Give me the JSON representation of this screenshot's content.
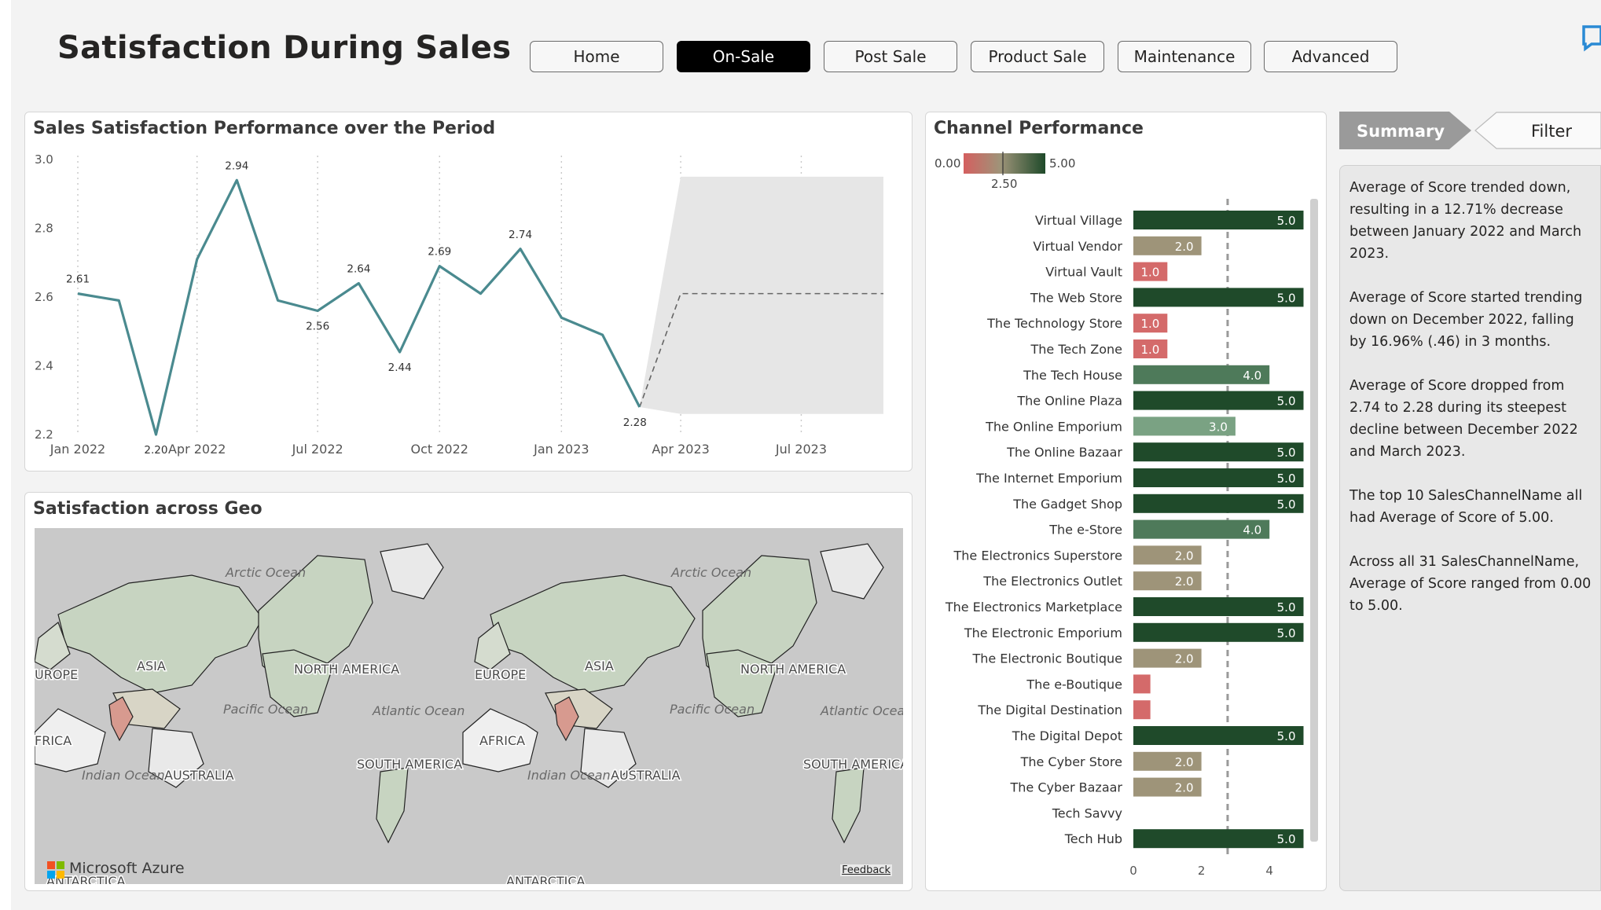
{
  "page": {
    "title": "Satisfaction During Sales"
  },
  "nav": {
    "buttons": [
      {
        "label": "Home",
        "active": false
      },
      {
        "label": "On-Sale",
        "active": true
      },
      {
        "label": "Post Sale",
        "active": false
      },
      {
        "label": "Product Sale",
        "active": false
      },
      {
        "label": "Maintenance",
        "active": false
      },
      {
        "label": "Advanced",
        "active": false
      }
    ]
  },
  "line_card": {
    "title": "Sales Satisfaction Performance over the Period"
  },
  "geo_card": {
    "title": "Satisfaction across Geo",
    "ocean_labels": [
      "Arctic Ocean",
      "Pacific Ocean",
      "Atlantic Ocean",
      "Indian Ocean",
      "Atlantic Ocea"
    ],
    "continent_labels": [
      "ASIA",
      "EUROPE",
      "UROPE",
      "AFRICA",
      "FRICA",
      "NORTH AMERICA",
      "SOUTH AMERICA",
      "AUSTRALIA",
      "ANTARCTICA"
    ],
    "brand": "Microsoft Azure",
    "feedback": "Feedback"
  },
  "channel_card": {
    "title": "Channel Performance"
  },
  "side": {
    "summary_tab": "Summary",
    "filter_tab": "Filter",
    "paragraphs": [
      "Average of Score trended down, resulting in a 12.71% decrease between January 2022 and March 2023.",
      "Average of Score started trending down on December 2022, falling by 16.96% (.46) in 3 months.",
      "Average of Score dropped from 2.74 to 2.28 during its steepest decline between December 2022 and March 2023.",
      "The top 10 SalesChannelName all had Average of Score of 5.00.",
      "Across all 31 SalesChannelName, Average of Score ranged from 0.00 to 5.00."
    ]
  },
  "colors": {
    "line": "#4a8a8f",
    "bar_dark": "#1f4a2a",
    "bar_mid": "#4e7a5a",
    "bar_light": "#7aa283",
    "bar_tan": "#9e9479",
    "bar_red": "#d46a6a",
    "gradient_low": "#d45f5f",
    "gradient_high": "#1f4a2a"
  },
  "chart_data": [
    {
      "type": "line",
      "title": "Sales Satisfaction Performance over the Period",
      "x": [
        "2022-01",
        "2022-02",
        "2022-03",
        "2022-04",
        "2022-05",
        "2022-06",
        "2022-07",
        "2022-08",
        "2022-09",
        "2022-10",
        "2022-11",
        "2022-12",
        "2023-01",
        "2023-02",
        "2023-03"
      ],
      "values": [
        2.61,
        2.59,
        2.2,
        2.71,
        2.94,
        2.59,
        2.56,
        2.64,
        2.44,
        2.69,
        2.61,
        2.74,
        2.54,
        2.49,
        2.28
      ],
      "data_labels": {
        "2022-01": "2.61",
        "2022-03": "2.20",
        "2022-05": "2.94",
        "2022-07": "2.56",
        "2022-08": "2.64",
        "2022-09": "2.44",
        "2022-10": "2.69",
        "2022-12": "2.74",
        "2023-03": "2.28"
      },
      "x_tick_labels": [
        "Jan 2022",
        "Apr 2022",
        "Jul 2022",
        "Oct 2022",
        "Jan 2023",
        "Apr 2023",
        "Jul 2023"
      ],
      "x_ticks": [
        "2022-01",
        "2022-04",
        "2022-07",
        "2022-10",
        "2023-01",
        "2023-04",
        "2023-07"
      ],
      "y_tick_labels": [
        "2.2",
        "2.4",
        "2.6",
        "2.8",
        "3.0"
      ],
      "ylim": [
        2.2,
        3.0
      ],
      "forecast": {
        "x": [
          "2023-03",
          "2023-04",
          "2023-09"
        ],
        "values": [
          2.28,
          2.61,
          2.61
        ],
        "band_upper": 2.95,
        "band_lower": 2.26
      },
      "grid": "vertical dotted"
    },
    {
      "type": "bar",
      "orientation": "horizontal",
      "title": "Channel Performance",
      "legend": {
        "min": "0.00",
        "mid": "2.50",
        "max": "5.00"
      },
      "categories": [
        "Virtual Village",
        "Virtual Vendor",
        "Virtual Vault",
        "The Web Store",
        "The Technology Store",
        "The Tech Zone",
        "The Tech House",
        "The Online Plaza",
        "The Online Emporium",
        "The Online Bazaar",
        "The Internet Emporium",
        "The Gadget Shop",
        "The e-Store",
        "The Electronics Superstore",
        "The Electronics Outlet",
        "The Electronics Marketplace",
        "The Electronic Emporium",
        "The Electronic Boutique",
        "The e-Boutique",
        "The Digital Destination",
        "The Digital Depot",
        "The Cyber Store",
        "The Cyber Bazaar",
        "Tech Savvy",
        "Tech Hub"
      ],
      "values": [
        5.0,
        2.0,
        1.0,
        5.0,
        1.0,
        1.0,
        4.0,
        5.0,
        3.0,
        5.0,
        5.0,
        5.0,
        4.0,
        2.0,
        2.0,
        5.0,
        5.0,
        2.0,
        0.5,
        0.5,
        5.0,
        2.0,
        2.0,
        0.0,
        5.0
      ],
      "value_labels": [
        "5.0",
        "2.0",
        "1.0",
        "5.0",
        "1.0",
        "1.0",
        "4.0",
        "5.0",
        "3.0",
        "5.0",
        "5.0",
        "5.0",
        "4.0",
        "2.0",
        "2.0",
        "5.0",
        "5.0",
        "2.0",
        "",
        "",
        "5.0",
        "2.0",
        "2.0",
        "",
        "5.0"
      ],
      "x_tick_labels": [
        "0",
        "2",
        "4"
      ],
      "reference_line": 2.77
    }
  ]
}
